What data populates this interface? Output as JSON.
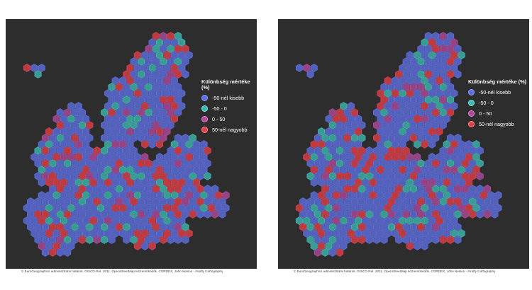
{
  "legend": {
    "title": "Különbség mértéke (%)",
    "items": [
      {
        "label": "-50-nél kisebb",
        "color": "#5f6fe0"
      },
      {
        "label": "-50 - 0",
        "color": "#3fb8b0"
      },
      {
        "label": "0 - 50",
        "color": "#b04a9c"
      },
      {
        "label": "50-nél nagyobb",
        "color": "#e0404a"
      }
    ]
  },
  "panels": [
    {
      "credits": "© EuroGeographics adminisztratív határok, GISCO Ref. 2011, OpenStreetMap közreműködők, CORDEX, John Nelson - Firefly Cartography"
    },
    {
      "credits": "© EuroGeographics adminisztratív határok, GISCO Ref. 2011, OpenStreetMap közreműködők, CORDEX, John Nelson - Firefly Cartography"
    }
  ]
}
